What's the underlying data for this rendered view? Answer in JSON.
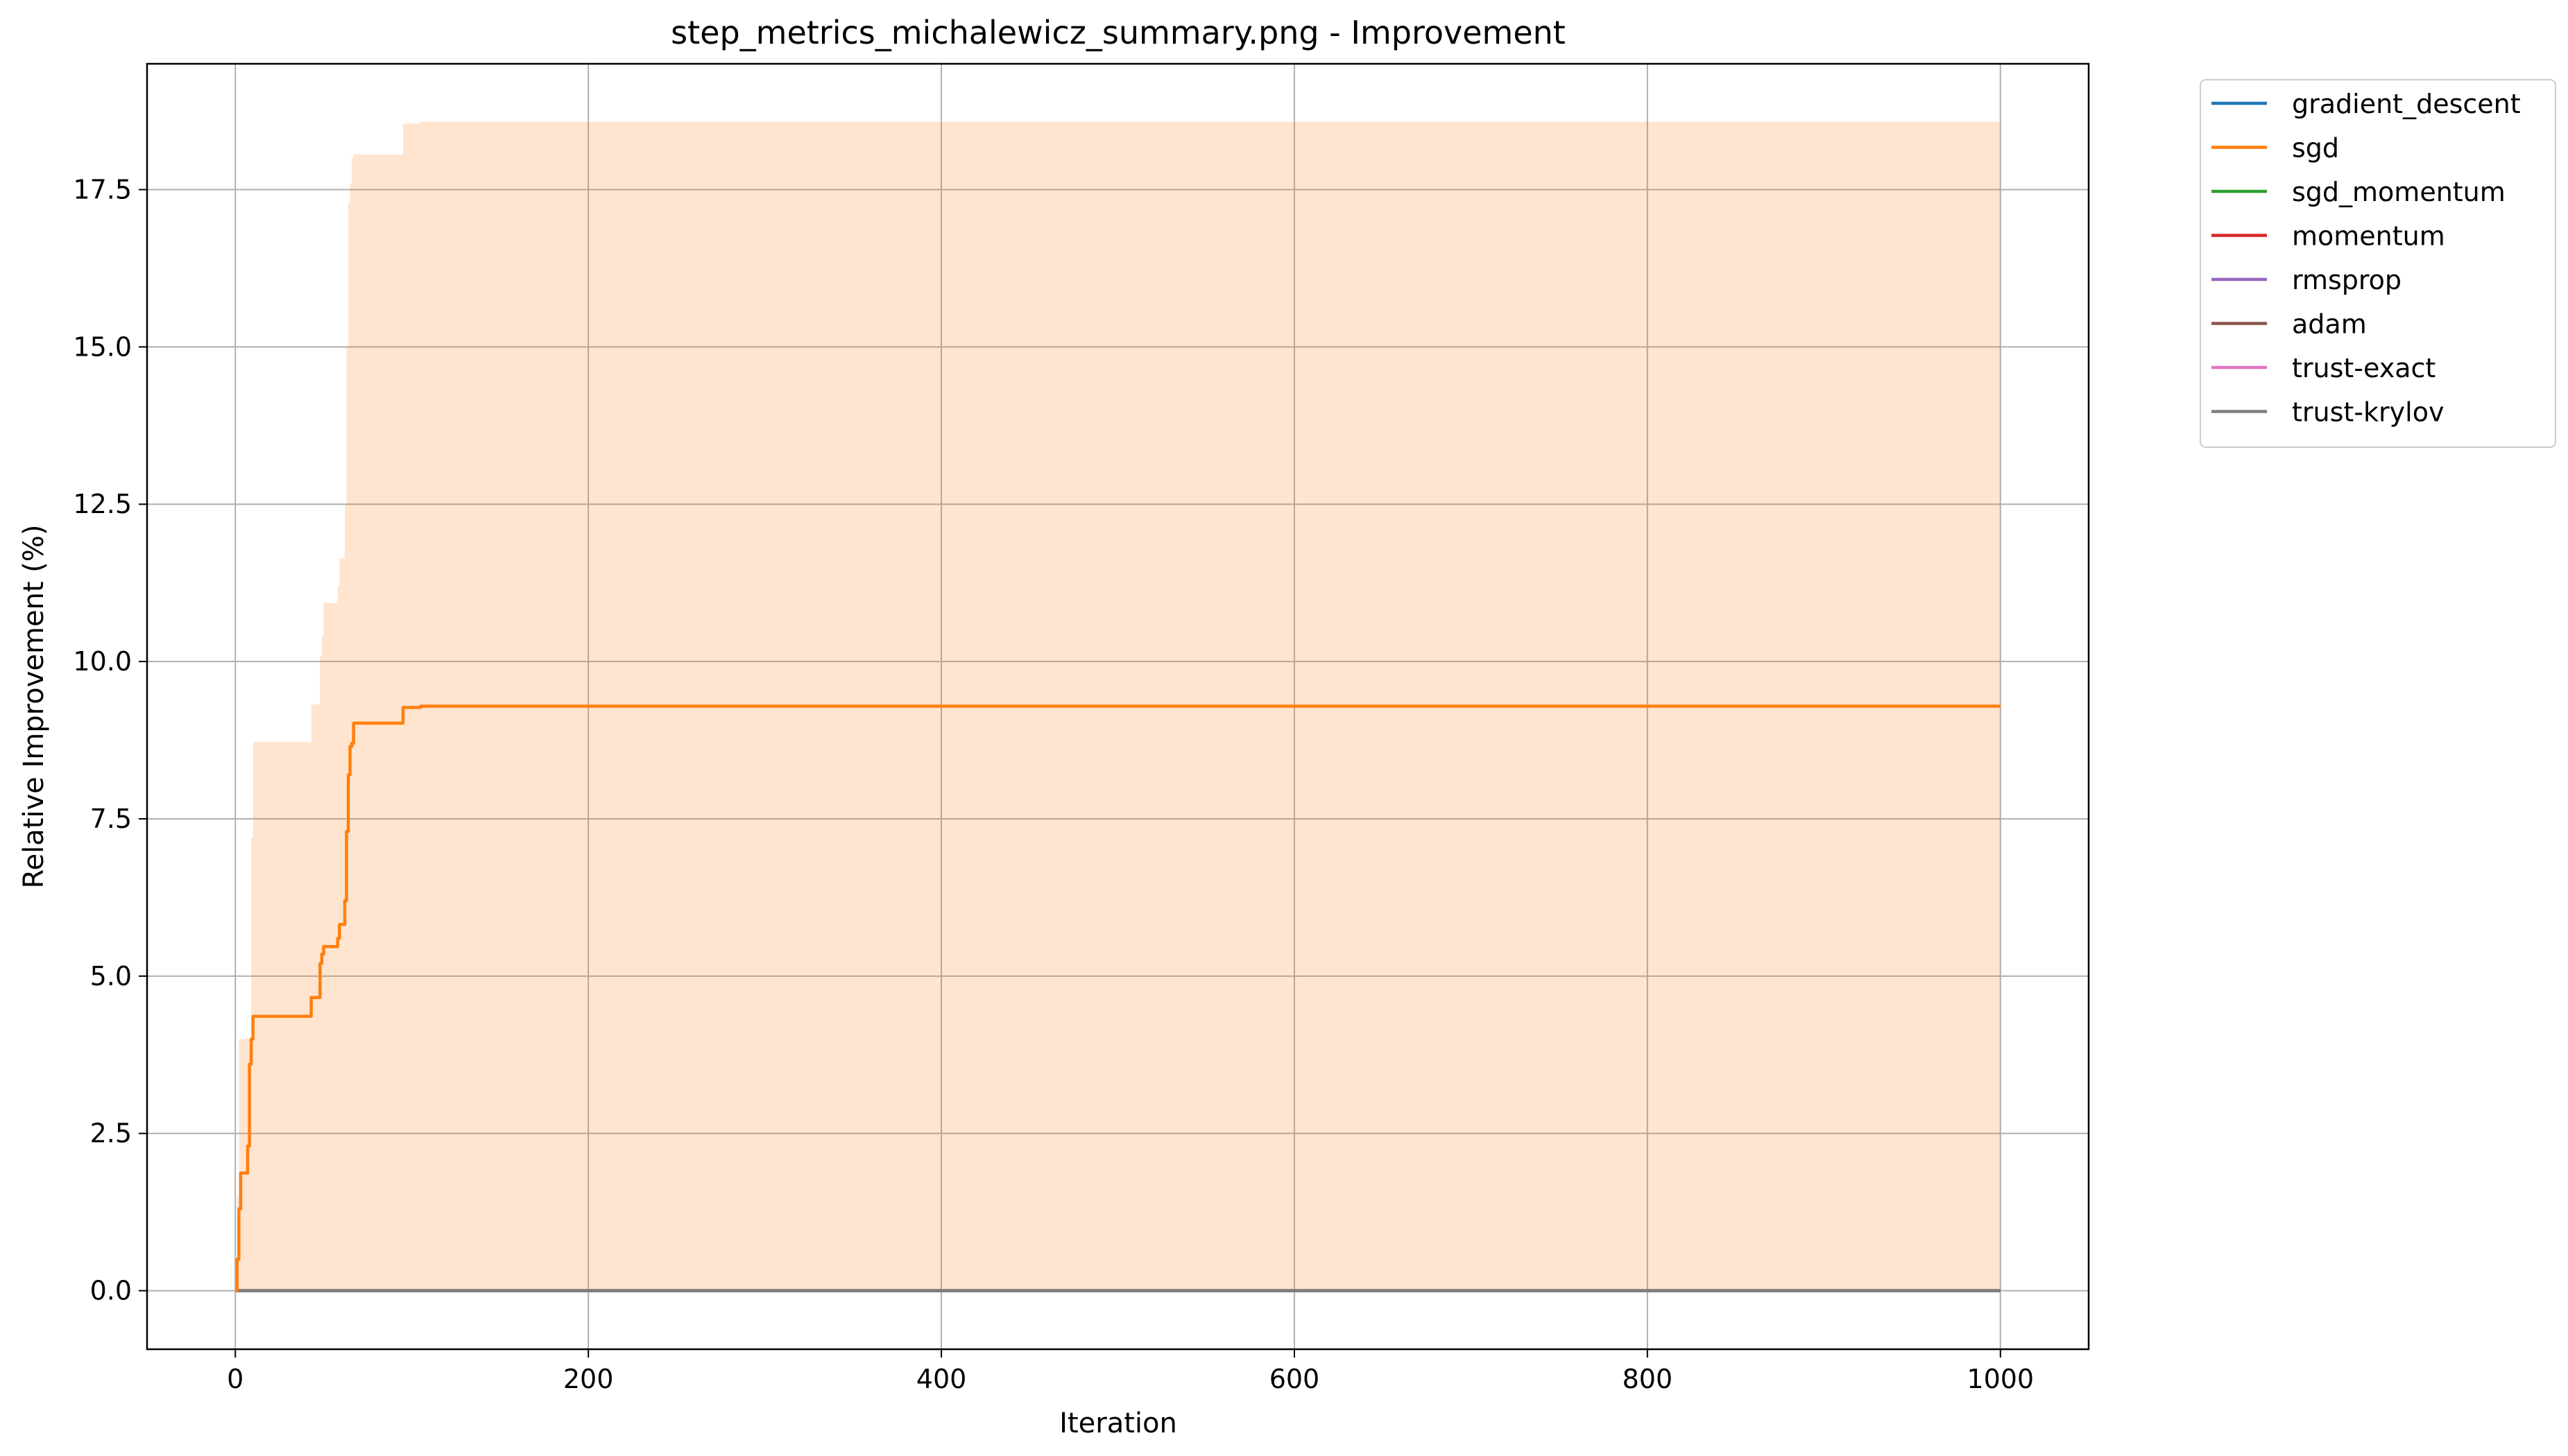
{
  "chart_data": {
    "type": "line",
    "title": "step_metrics_michalewicz_summary.png - Improvement",
    "xlabel": "Iteration",
    "ylabel": "Relative Improvement (%)",
    "xlim": [
      -50,
      1050
    ],
    "ylim": [
      -0.93,
      19.5
    ],
    "xticks": [
      0,
      200,
      400,
      600,
      800,
      1000
    ],
    "yticks": [
      0.0,
      2.5,
      5.0,
      7.5,
      10.0,
      12.5,
      15.0,
      17.5
    ],
    "grid": true,
    "legend_position": "outside-top-right",
    "series": [
      {
        "name": "gradient_descent",
        "color": "#1f77b4",
        "x": [
          0,
          1000
        ],
        "y": [
          0,
          0
        ]
      },
      {
        "name": "sgd",
        "color": "#ff7f0e",
        "x": [
          0,
          1,
          2,
          3,
          6,
          7,
          8,
          9,
          10,
          42,
          43,
          47,
          48,
          49,
          50,
          57,
          58,
          59,
          61,
          62,
          63,
          64,
          65,
          66,
          67,
          94,
          95,
          100,
          105,
          1000
        ],
        "y": [
          0,
          0.5,
          1.3,
          1.87,
          1.87,
          2.3,
          3.6,
          4.0,
          4.36,
          4.36,
          4.66,
          4.66,
          5.2,
          5.35,
          5.47,
          5.47,
          5.6,
          5.82,
          5.82,
          6.2,
          7.3,
          8.2,
          8.65,
          8.7,
          9.02,
          9.02,
          9.27,
          9.27,
          9.29,
          9.29
        ],
        "band": {
          "x": [
            0,
            1,
            2,
            8,
            9,
            10,
            42,
            43,
            47,
            48,
            49,
            50,
            57,
            58,
            59,
            61,
            62,
            63,
            64,
            65,
            66,
            67,
            94,
            95,
            105,
            1000
          ],
          "lower": [
            0,
            0,
            0,
            0,
            0,
            0,
            0,
            0,
            0,
            0,
            0,
            0,
            0,
            0,
            0,
            0,
            0,
            0,
            0,
            0,
            0,
            0,
            0,
            0,
            0,
            0
          ],
          "upper": [
            0,
            1.5,
            4.0,
            4.0,
            7.2,
            8.72,
            8.72,
            9.32,
            9.32,
            10.1,
            10.4,
            10.93,
            10.93,
            11.2,
            11.64,
            11.64,
            12.5,
            15.0,
            17.3,
            17.6,
            18.0,
            18.06,
            18.06,
            18.55,
            18.58,
            18.58
          ]
        }
      },
      {
        "name": "sgd_momentum",
        "color": "#2ca02c",
        "x": [
          0,
          1000
        ],
        "y": [
          0,
          0
        ]
      },
      {
        "name": "momentum",
        "color": "#d62728",
        "x": [
          0,
          1000
        ],
        "y": [
          0,
          0
        ]
      },
      {
        "name": "rmsprop",
        "color": "#9467bd",
        "x": [
          0,
          1000
        ],
        "y": [
          0,
          0
        ]
      },
      {
        "name": "adam",
        "color": "#8c564b",
        "x": [
          0,
          1000
        ],
        "y": [
          0,
          0
        ]
      },
      {
        "name": "trust-exact",
        "color": "#e377c2",
        "x": [
          0,
          1000
        ],
        "y": [
          0,
          0
        ]
      },
      {
        "name": "trust-krylov",
        "color": "#7f7f7f",
        "x": [
          0,
          1000
        ],
        "y": [
          0,
          0
        ]
      }
    ]
  }
}
